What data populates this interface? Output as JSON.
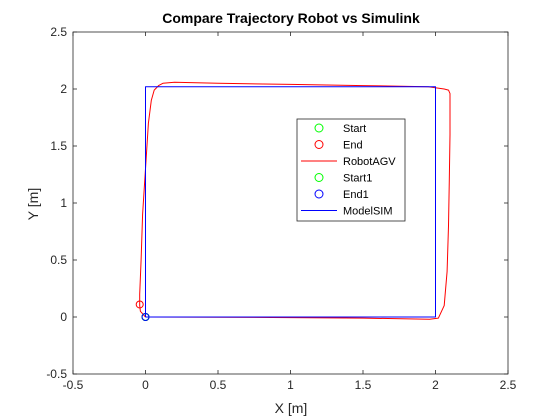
{
  "chart_data": {
    "type": "line",
    "title": "Compare Trajectory Robot vs Simulink",
    "xlabel": "X [m]",
    "ylabel": "Y [m]",
    "xlim": [
      -0.5,
      2.5
    ],
    "ylim": [
      -0.5,
      2.5
    ],
    "xticks": [
      "-0.5",
      "0",
      "0.5",
      "1",
      "1.5",
      "2",
      "2.5"
    ],
    "yticks": [
      "-0.5",
      "0",
      "0.5",
      "1",
      "1.5",
      "2",
      "2.5"
    ],
    "grid": false,
    "legend_position": "inside-upper-right",
    "series": [
      {
        "name": "RobotAGV",
        "kind": "line",
        "color": "#ff0000",
        "x": [
          0.0,
          0.5,
          1.0,
          1.5,
          1.96,
          2.02,
          2.06,
          2.08,
          2.09,
          2.095,
          2.1,
          2.1,
          2.1,
          2.09,
          2.06,
          1.95,
          1.5,
          1.0,
          0.5,
          0.2,
          0.12,
          0.09,
          0.06,
          0.04,
          0.02,
          0.0,
          -0.02,
          -0.03,
          -0.04,
          -0.04,
          -0.035,
          0.0
        ],
        "y": [
          0.0,
          -0.002,
          -0.005,
          -0.01,
          -0.02,
          -0.01,
          0.1,
          0.4,
          0.8,
          1.2,
          1.6,
          1.9,
          1.96,
          1.99,
          2.0,
          2.02,
          2.03,
          2.04,
          2.05,
          2.06,
          2.05,
          2.03,
          1.99,
          1.9,
          1.7,
          1.3,
          0.9,
          0.5,
          0.2,
          0.1,
          0.05,
          0.0
        ]
      },
      {
        "name": "ModelSIM",
        "kind": "line",
        "color": "#0000ff",
        "x": [
          0.0,
          2.0,
          2.0,
          2.0,
          0.0,
          0.0,
          0.0
        ],
        "y": [
          0.0,
          0.0,
          1.0,
          2.02,
          2.02,
          1.0,
          0.0
        ]
      }
    ],
    "markers": [
      {
        "name": "Start",
        "x": 0.0,
        "y": 0.0,
        "color": "#00ff00",
        "shape": "circle"
      },
      {
        "name": "End",
        "x": -0.04,
        "y": 0.11,
        "color": "#ff0000",
        "shape": "circle"
      },
      {
        "name": "Start1",
        "x": 0.0,
        "y": 0.0,
        "color": "#00ff00",
        "shape": "circle"
      },
      {
        "name": "End1",
        "x": 0.0,
        "y": 0.0,
        "color": "#0000ff",
        "shape": "circle"
      }
    ],
    "legend": [
      {
        "label": "Start",
        "kind": "marker",
        "color": "#00ff00"
      },
      {
        "label": "End",
        "kind": "marker",
        "color": "#ff0000"
      },
      {
        "label": "RobotAGV",
        "kind": "line",
        "color": "#ff0000"
      },
      {
        "label": "Start1",
        "kind": "marker",
        "color": "#00ff00"
      },
      {
        "label": "End1",
        "kind": "marker",
        "color": "#0000ff"
      },
      {
        "label": "ModelSIM",
        "kind": "line",
        "color": "#0000ff"
      }
    ]
  }
}
